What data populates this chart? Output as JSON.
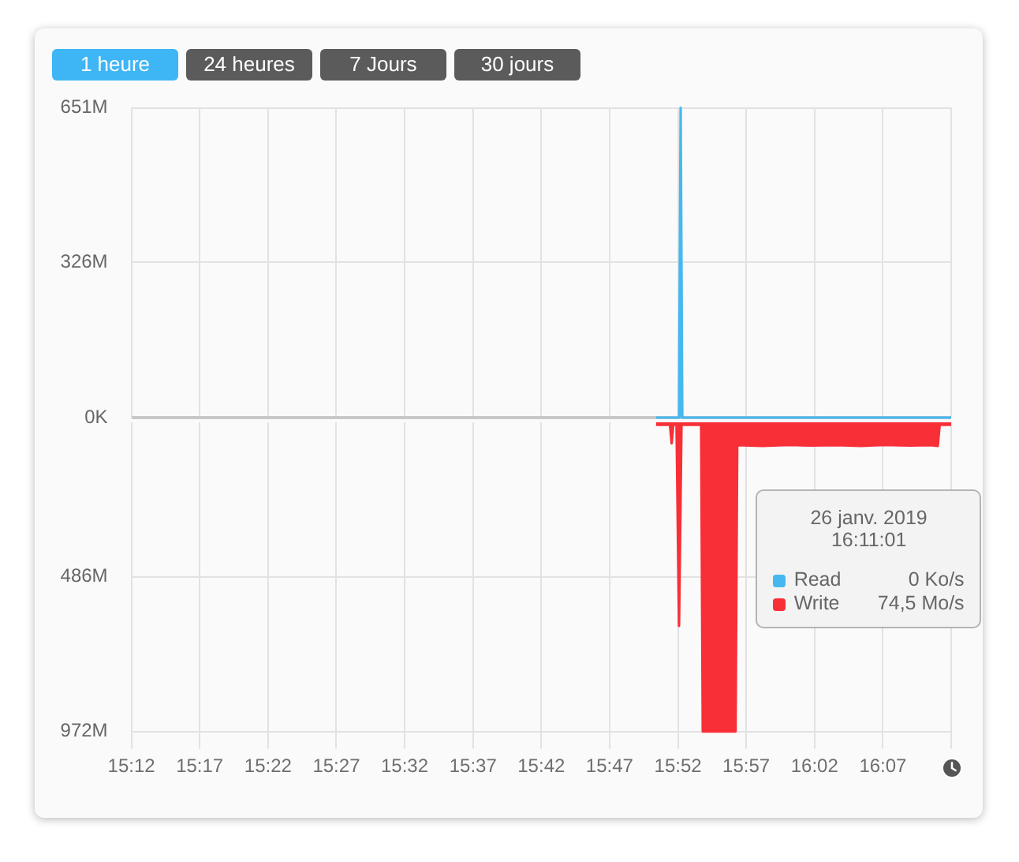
{
  "chart_data": [
    {
      "type": "area",
      "annotations": [
        "1 heure",
        "24 heures",
        "7 Jours",
        "30 jours"
      ],
      "xlim": [
        15.2,
        16.2
      ],
      "xticks": [
        {
          "value": 15.2,
          "label": null
        },
        {
          "value": 15.2833,
          "label": null
        },
        {
          "value": 15.3667,
          "label": null
        },
        {
          "value": 15.45,
          "label": null
        },
        {
          "value": 15.5333,
          "label": null
        },
        {
          "value": 15.6167,
          "label": null
        },
        {
          "value": 15.7,
          "label": null
        },
        {
          "value": 15.7833,
          "label": null
        },
        {
          "value": 15.8667,
          "label": null
        },
        {
          "value": 15.95,
          "label": null
        },
        {
          "value": 16.0333,
          "label": null
        },
        {
          "value": 16.1167,
          "label": null
        },
        {
          "value": 16.2,
          "label": null
        }
      ],
      "ylim": [
        0,
        651
      ],
      "yticks": [
        {
          "value": 0,
          "label": "0K"
        },
        {
          "value": 326,
          "label": "326M"
        },
        {
          "value": 651,
          "label": "651M"
        }
      ],
      "tick_labels": "y",
      "grid": true,
      "series": [
        {
          "name": "Read",
          "color": "#46b8f0",
          "x": [
            15.84,
            15.868,
            15.87,
            15.872,
            16.1836,
            16.2
          ],
          "values": [
            0,
            0,
            651,
            0,
            0,
            0
          ]
        }
      ]
    },
    {
      "type": "area",
      "legend": "right",
      "legend_title": "26 janv. 2019\n16:11:01",
      "annotations": [
        "0 Ko/s",
        "74,5 Mo/s"
      ],
      "xlim": [
        15.2,
        16.2
      ],
      "xticks": [
        {
          "value": 15.2,
          "label": "15:12"
        },
        {
          "value": 15.2833,
          "label": "15:17"
        },
        {
          "value": 15.3667,
          "label": "15:22"
        },
        {
          "value": 15.45,
          "label": "15:27"
        },
        {
          "value": 15.5333,
          "label": "15:32"
        },
        {
          "value": 15.6167,
          "label": "15:37"
        },
        {
          "value": 15.7,
          "label": "15:42"
        },
        {
          "value": 15.7833,
          "label": "15:47"
        },
        {
          "value": 15.8667,
          "label": "15:52"
        },
        {
          "value": 15.95,
          "label": "15:57"
        },
        {
          "value": 16.0333,
          "label": "16:02"
        },
        {
          "value": 16.1167,
          "label": "16:07"
        },
        {
          "value": 16.2,
          "label": null
        }
      ],
      "ylim": [
        972,
        0
      ],
      "yticks": [
        {
          "value": 486,
          "label": "486M"
        },
        {
          "value": 972,
          "label": "972M"
        }
      ],
      "grid": true,
      "series": [
        {
          "name": "Write",
          "color": "#f82f37",
          "x": [
            15.84,
            15.857,
            15.859,
            15.861,
            15.865,
            15.868,
            15.871,
            15.895,
            15.897,
            15.937,
            15.939,
            15.97,
            16.002,
            16.03,
            16.06,
            16.09,
            16.117,
            16.15,
            16.175,
            16.1836,
            16.186,
            16.2
          ],
          "values": [
            8,
            8,
            66,
            8,
            8,
            640,
            8,
            8,
            972,
            972,
            72,
            74,
            71,
            73,
            72,
            74,
            71,
            73,
            72,
            74.5,
            8,
            8
          ]
        }
      ]
    }
  ]
}
